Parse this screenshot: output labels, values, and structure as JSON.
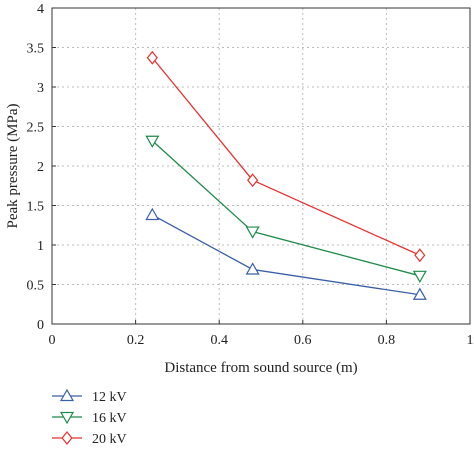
{
  "chart_data": {
    "type": "line",
    "xlabel": "Distance from sound source (m)",
    "ylabel": "Peak pressure (MPa)",
    "xlim": [
      0,
      1
    ],
    "ylim": [
      0,
      4
    ],
    "xticks": [
      "0",
      "0.2",
      "0.4",
      "0.6",
      "0.8",
      "1"
    ],
    "yticks": [
      "0",
      "0.5",
      "1",
      "1.5",
      "2",
      "2.5",
      "3",
      "3.5",
      "4"
    ],
    "grid": "dashed",
    "legend_position": "bottom-left",
    "series": [
      {
        "name": "12 kV",
        "marker": "triangle-up",
        "color": "#3a5fa8",
        "x": [
          0.24,
          0.48,
          0.88
        ],
        "y": [
          1.38,
          0.69,
          0.37
        ]
      },
      {
        "name": "16 kV",
        "marker": "triangle-down",
        "color": "#1e8b4a",
        "x": [
          0.24,
          0.48,
          0.88
        ],
        "y": [
          2.32,
          1.17,
          0.61
        ]
      },
      {
        "name": "20 kV",
        "marker": "diamond",
        "color": "#e8302f",
        "x": [
          0.24,
          0.48,
          0.88
        ],
        "y": [
          3.37,
          1.82,
          0.87
        ]
      }
    ]
  }
}
